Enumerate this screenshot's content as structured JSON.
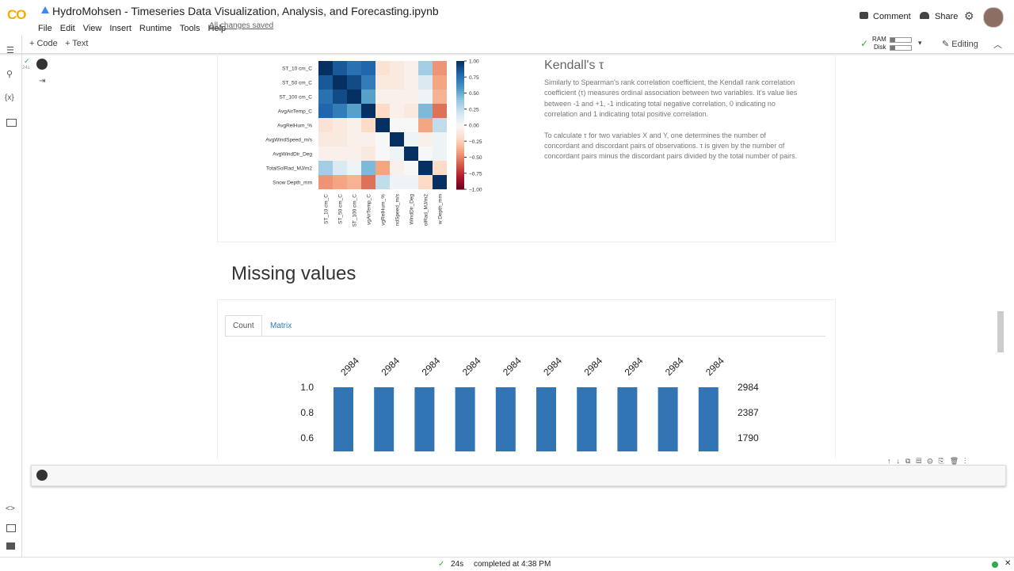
{
  "header": {
    "logo": "CO",
    "title": "HydroMohsen - Timeseries Data Visualization, Analysis, and Forecasting.ipynb",
    "menu": [
      "File",
      "Edit",
      "View",
      "Insert",
      "Runtime",
      "Tools",
      "Help"
    ],
    "saved": "All changes saved",
    "comment": "Comment",
    "share": "Share"
  },
  "toolbar": {
    "code": "Code",
    "text": "Text",
    "ram": "RAM",
    "disk": "Disk",
    "editing": "Editing"
  },
  "cell": {
    "exec_time": "24s"
  },
  "heatmap": {
    "type": "heatmap",
    "y_labels": [
      "ST_10 cm_C",
      "ST_50 cm_C",
      "ST_100 cm_C",
      "AvgAirTemp_C",
      "AvgRelHum_%",
      "AvgWindSpeed_m/s",
      "AvgWindDir_Deg",
      "TotalSolRad_MJ/m2",
      "Snow Depth_mm"
    ],
    "x_labels": [
      "ST_10 cm_C",
      "ST_50 cm_C",
      "ST_100 cm_C",
      "vgAirTemp_C",
      "vgRelHum_%",
      "ndSpeed_m/s",
      "WindDir_Deg",
      "olRad_MJ/m2",
      "w Depth_mm"
    ],
    "values": [
      [
        1,
        0.85,
        0.75,
        0.8,
        -0.15,
        -0.1,
        -0.05,
        0.35,
        -0.45
      ],
      [
        0.85,
        1,
        0.9,
        0.7,
        -0.1,
        -0.1,
        -0.05,
        0.15,
        -0.4
      ],
      [
        0.75,
        0.9,
        1,
        0.55,
        -0.05,
        -0.05,
        -0.05,
        0.05,
        -0.35
      ],
      [
        0.8,
        0.7,
        0.55,
        1,
        -0.2,
        -0.05,
        -0.1,
        0.45,
        -0.55
      ],
      [
        -0.15,
        -0.1,
        -0.05,
        -0.2,
        1,
        0,
        0,
        -0.4,
        0.25
      ],
      [
        -0.1,
        -0.1,
        -0.05,
        -0.05,
        0,
        1,
        0.05,
        -0.05,
        0.05
      ],
      [
        -0.05,
        -0.05,
        -0.05,
        -0.1,
        0,
        0.05,
        1,
        0,
        0.05
      ],
      [
        0.35,
        0.15,
        0.05,
        0.45,
        -0.4,
        -0.05,
        0,
        1,
        -0.2
      ],
      [
        -0.45,
        -0.4,
        -0.35,
        -0.55,
        0.25,
        0.05,
        0.05,
        -0.2,
        1
      ]
    ],
    "colorbar_lim": [
      -1,
      1
    ],
    "colorbar_ticks": [
      {
        "value": 1,
        "label": "1.00"
      },
      {
        "value": 0.75,
        "label": "0.75"
      },
      {
        "value": 0.5,
        "label": "0.50"
      },
      {
        "value": 0.25,
        "label": "0.25"
      },
      {
        "value": 0,
        "label": "0.00"
      },
      {
        "value": -0.25,
        "label": "−0.25"
      },
      {
        "value": -0.5,
        "label": "−0.50"
      },
      {
        "value": -0.75,
        "label": "−0.75"
      },
      {
        "value": -1,
        "label": "−1.00"
      }
    ]
  },
  "kendall": {
    "title": "Kendall's τ",
    "paragraphs": [
      "Similarly to Spearman's rank correlation coefficient, the Kendall rank correlation coefficient (τ) measures ordinal association between two variables. It's value lies between -1 and +1, -1 indicating total negative correlation, 0 indicating no correlation and 1 indicating total positive correlation.",
      "To calculate τ for two variables X and Y, one determines the number of concordant and discordant pairs of observations. τ is given by the number of concordant pairs minus the discordant pairs divided by the total number of pairs."
    ]
  },
  "section_title": "Missing values",
  "tabs": [
    "Count",
    "Matrix"
  ],
  "missing_count": {
    "type": "bar",
    "values": [
      1,
      1,
      1,
      1,
      1,
      1,
      1,
      1,
      1,
      1
    ],
    "value_labels": [
      "2984",
      "2984",
      "2984",
      "2984",
      "2984",
      "2984",
      "2984",
      "2984",
      "2984",
      "2984"
    ],
    "color": "#3274b4",
    "ylim": [
      0,
      1
    ],
    "yticks": [
      {
        "value": 1,
        "label": "1.0"
      },
      {
        "value": 0.8,
        "label": "0.8"
      },
      {
        "value": 0.6,
        "label": "0.6"
      }
    ],
    "y2lim": [
      0,
      2984
    ],
    "y2ticks": [
      2984,
      2387,
      1790
    ]
  },
  "status": {
    "time": "24s",
    "completed": "completed at 4:38 PM"
  }
}
